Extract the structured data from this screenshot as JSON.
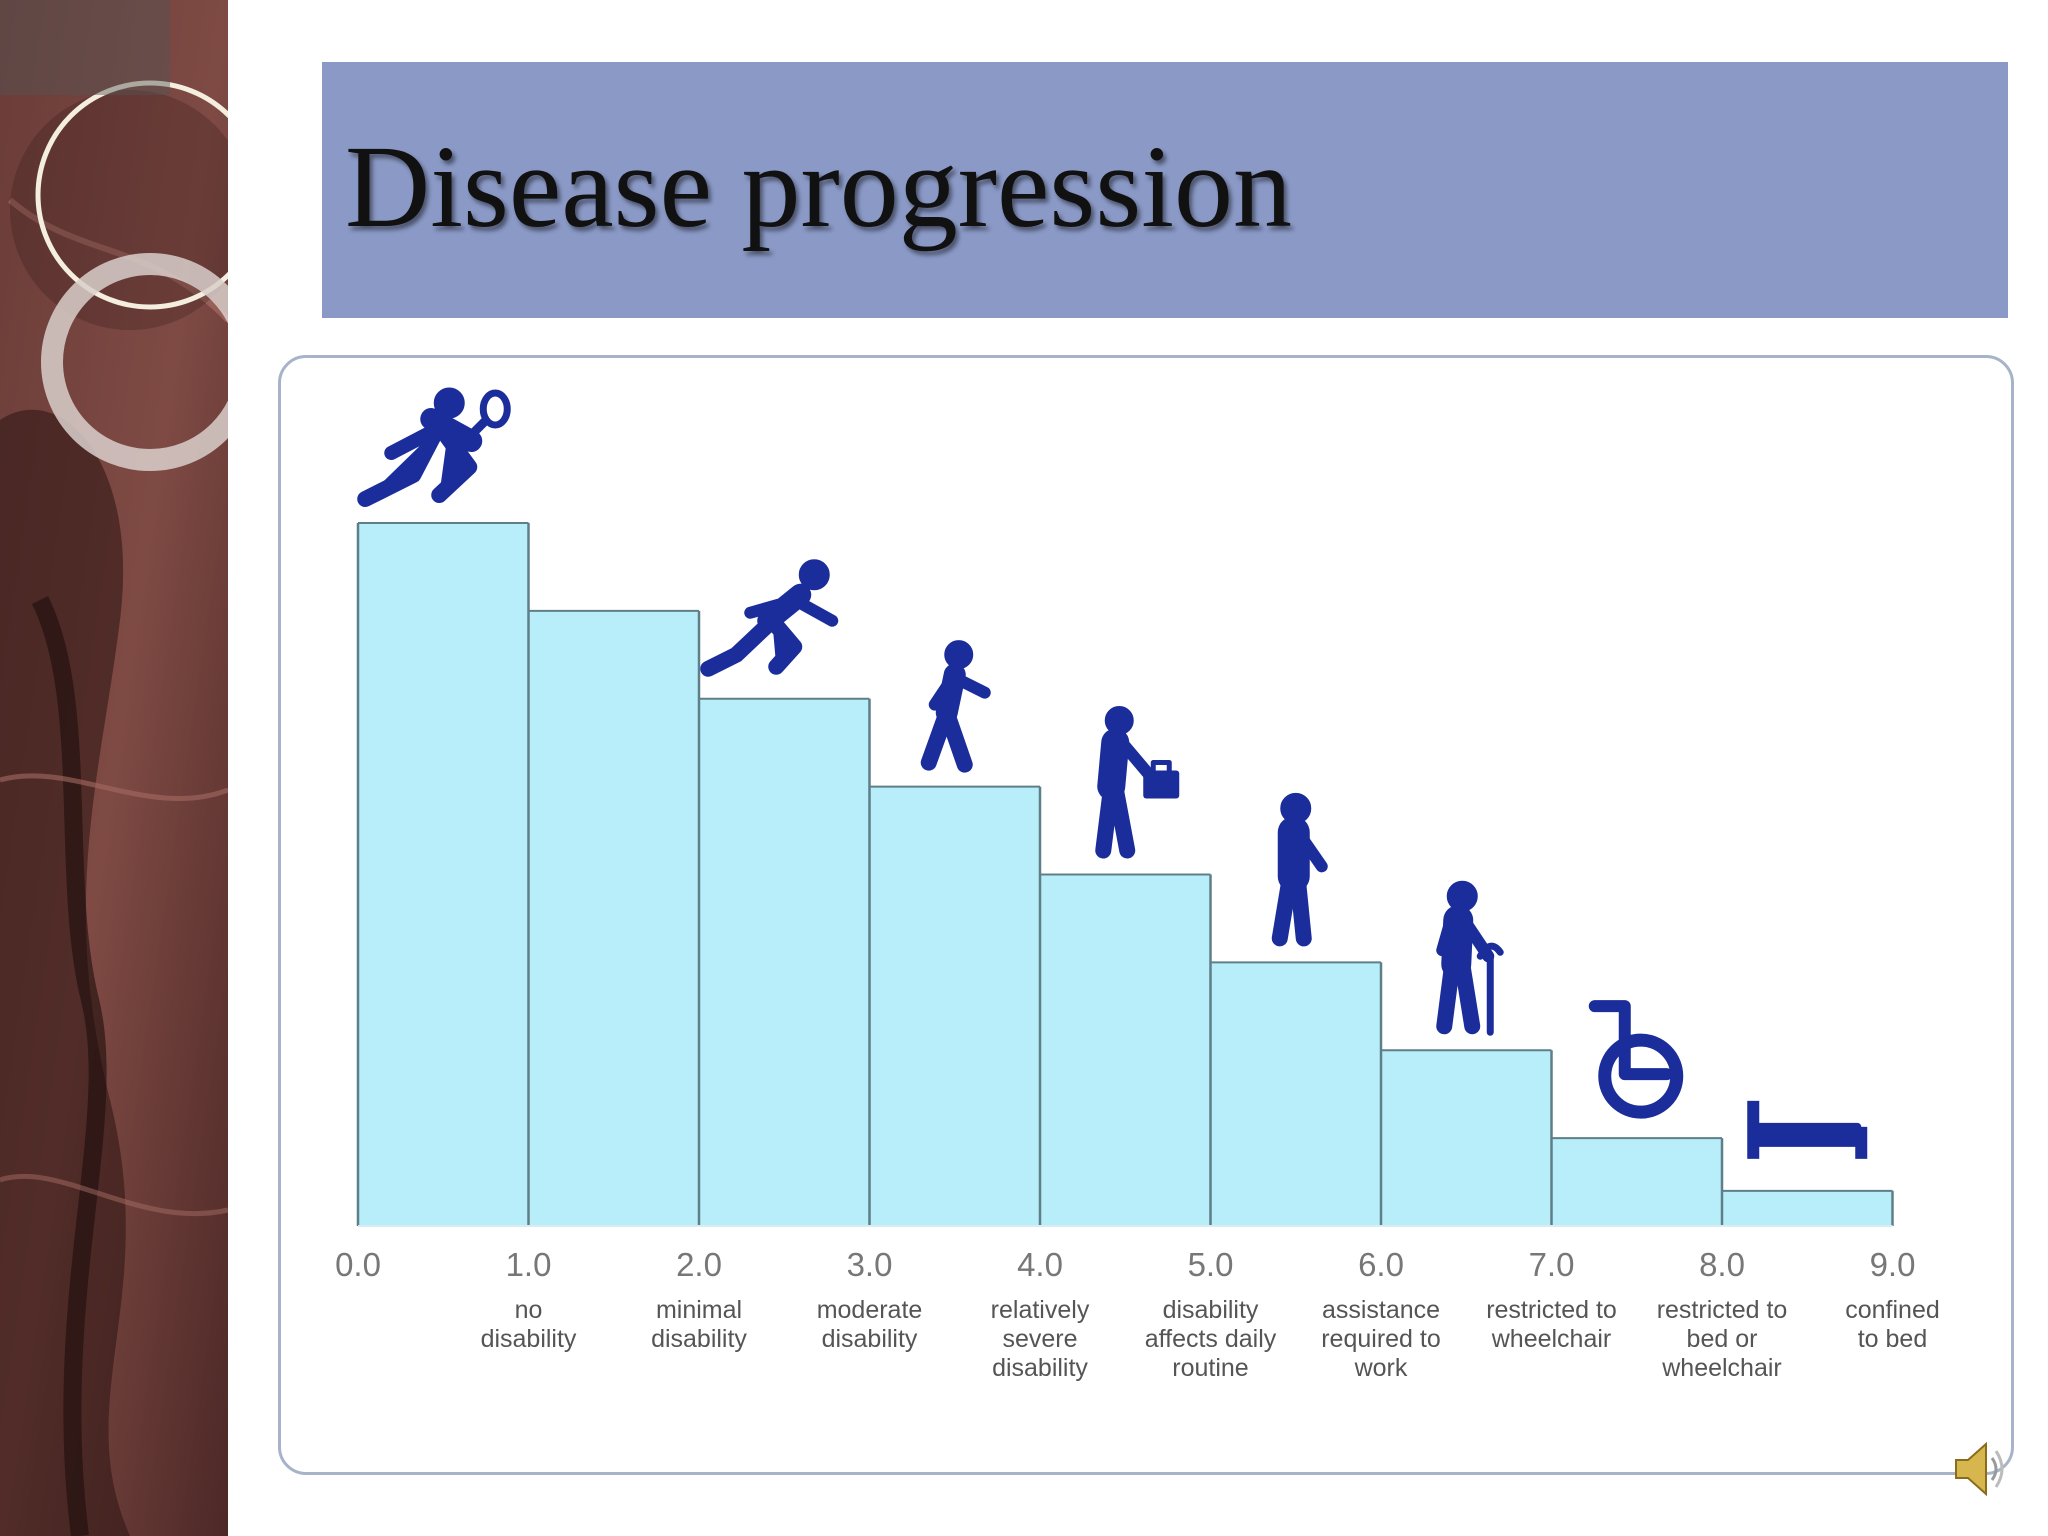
{
  "slide": {
    "title": "Disease progression"
  },
  "colors": {
    "title_band": "#8a99c6",
    "bar_fill": "#b8eefa",
    "bar_edge": "#5f7f88",
    "icon": "#1a2d9b",
    "label_text": "#555555"
  },
  "chart_data": {
    "type": "bar",
    "title": "",
    "xlabel": "",
    "ylabel": "",
    "x_ticks": [
      "0.0",
      "1.0",
      "2.0",
      "3.0",
      "4.0",
      "5.0",
      "6.0",
      "7.0",
      "8.0",
      "9.0"
    ],
    "ylim": [
      0,
      10
    ],
    "grid": false,
    "bars": [
      {
        "x0": 0,
        "x1": 1,
        "value": 10.0
      },
      {
        "x0": 1,
        "x1": 2,
        "value": 8.75
      },
      {
        "x0": 2,
        "x1": 3,
        "value": 7.5
      },
      {
        "x0": 3,
        "x1": 4,
        "value": 6.25
      },
      {
        "x0": 4,
        "x1": 5,
        "value": 5.0
      },
      {
        "x0": 5,
        "x1": 6,
        "value": 3.75
      },
      {
        "x0": 6,
        "x1": 7,
        "value": 2.5
      },
      {
        "x0": 7,
        "x1": 8,
        "value": 1.25
      },
      {
        "x0": 8,
        "x1": 9,
        "value": 0.5
      }
    ],
    "annotations": [
      {
        "x": 1,
        "lines": [
          "no",
          "disability"
        ]
      },
      {
        "x": 2,
        "lines": [
          "minimal",
          "disability"
        ]
      },
      {
        "x": 3,
        "lines": [
          "moderate",
          "disability"
        ]
      },
      {
        "x": 4,
        "lines": [
          "relatively",
          "severe",
          "disability"
        ]
      },
      {
        "x": 5,
        "lines": [
          "disability",
          "affects daily",
          "routine"
        ]
      },
      {
        "x": 6,
        "lines": [
          "assistance",
          "required to",
          "work"
        ]
      },
      {
        "x": 7,
        "lines": [
          "restricted to",
          "wheelchair"
        ]
      },
      {
        "x": 8,
        "lines": [
          "restricted to",
          "bed or",
          "wheelchair"
        ]
      },
      {
        "x": 9,
        "lines": [
          "confined",
          "to bed"
        ]
      }
    ],
    "icons": [
      {
        "x": 0.5,
        "name": "tennis-player-icon"
      },
      {
        "x": 2.5,
        "name": "runner-icon"
      },
      {
        "x": 3.5,
        "name": "walker-icon"
      },
      {
        "x": 4.5,
        "name": "person-with-briefcase-icon"
      },
      {
        "x": 5.5,
        "name": "slow-walker-icon"
      },
      {
        "x": 6.5,
        "name": "person-with-cane-icon"
      },
      {
        "x": 7.5,
        "name": "wheelchair-icon"
      },
      {
        "x": 8.5,
        "name": "bed-icon"
      }
    ]
  }
}
